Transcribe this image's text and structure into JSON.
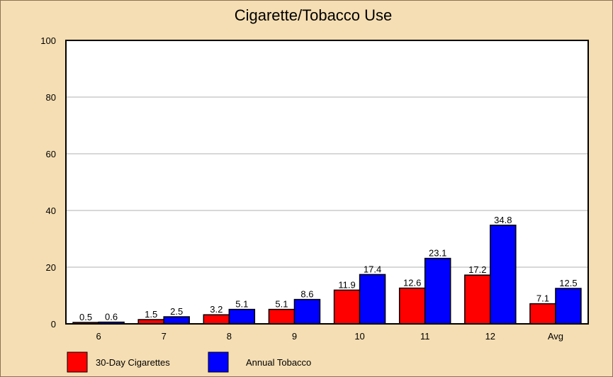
{
  "chart_data": {
    "type": "bar",
    "title": "Cigarette/Tobacco Use",
    "xlabel": "",
    "ylabel": "",
    "categories": [
      "6",
      "7",
      "8",
      "9",
      "10",
      "11",
      "12",
      "Avg"
    ],
    "ylim": [
      0,
      100
    ],
    "yticks": [
      0,
      20,
      40,
      60,
      80,
      100
    ],
    "grid": true,
    "legend_position": "bottom-left",
    "series": [
      {
        "name": "30-Day Cigarettes",
        "color": "#ff0000",
        "values": [
          0.5,
          1.5,
          3.2,
          5.1,
          11.9,
          12.6,
          17.2,
          7.1
        ]
      },
      {
        "name": "Annual Tobacco",
        "color": "#0000ff",
        "values": [
          0.6,
          2.5,
          5.1,
          8.6,
          17.4,
          23.1,
          34.8,
          12.5
        ]
      }
    ]
  }
}
